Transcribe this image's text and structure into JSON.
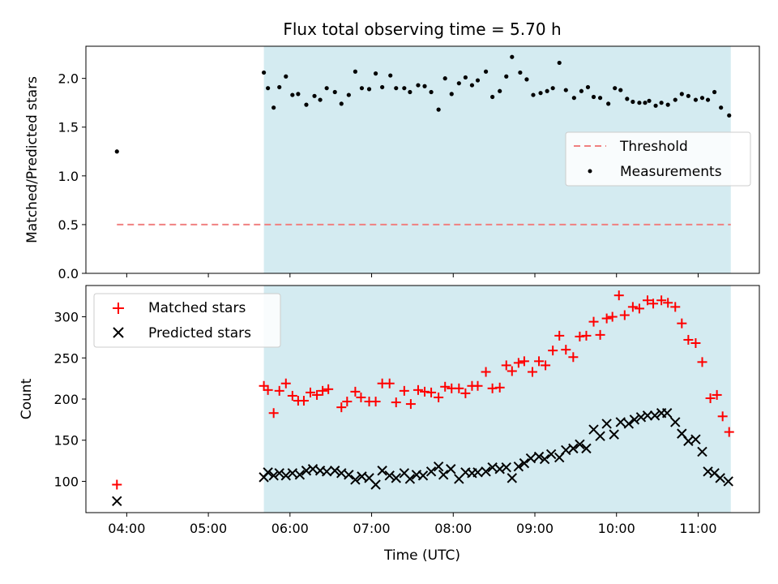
{
  "chart_data": [
    {
      "type": "scatter",
      "title": "Flux total observing time = 5.70 h",
      "xlabel": "",
      "ylabel": "Matched/Predicted stars",
      "xlim": [
        3.5,
        11.75
      ],
      "ylim": [
        0,
        2.33
      ],
      "grid": false,
      "legend": "center-right",
      "x_ticks": [
        {
          "v": 4,
          "label": "04:00"
        },
        {
          "v": 5,
          "label": "05:00"
        },
        {
          "v": 6,
          "label": "06:00"
        },
        {
          "v": 7,
          "label": "07:00"
        },
        {
          "v": 8,
          "label": "08:00"
        },
        {
          "v": 9,
          "label": "09:00"
        },
        {
          "v": 10,
          "label": "10:00"
        },
        {
          "v": 11,
          "label": "11:00"
        }
      ],
      "y_ticks": [
        {
          "v": 0.0,
          "label": "0.0"
        },
        {
          "v": 0.5,
          "label": "0.5"
        },
        {
          "v": 1.0,
          "label": "1.0"
        },
        {
          "v": 1.5,
          "label": "1.5"
        },
        {
          "v": 2.0,
          "label": "2.0"
        }
      ],
      "shaded_region": {
        "x": [
          5.68,
          11.4
        ],
        "color": "#d4ebf1"
      },
      "threshold": {
        "name": "Threshold",
        "y": 0.5,
        "x": [
          3.88,
          11.4
        ],
        "color": "#f08080"
      },
      "series": [
        {
          "name": "Measurements",
          "color": "#000000",
          "points": [
            [
              3.88,
              1.25
            ],
            [
              5.68,
              2.06
            ],
            [
              5.73,
              1.9
            ],
            [
              5.8,
              1.7
            ],
            [
              5.87,
              1.91
            ],
            [
              5.95,
              2.02
            ],
            [
              6.03,
              1.83
            ],
            [
              6.1,
              1.84
            ],
            [
              6.2,
              1.73
            ],
            [
              6.3,
              1.82
            ],
            [
              6.37,
              1.78
            ],
            [
              6.45,
              1.9
            ],
            [
              6.55,
              1.86
            ],
            [
              6.63,
              1.74
            ],
            [
              6.72,
              1.83
            ],
            [
              6.8,
              2.07
            ],
            [
              6.88,
              1.9
            ],
            [
              6.97,
              1.89
            ],
            [
              7.05,
              2.05
            ],
            [
              7.13,
              1.91
            ],
            [
              7.23,
              2.03
            ],
            [
              7.3,
              1.9
            ],
            [
              7.4,
              1.9
            ],
            [
              7.47,
              1.86
            ],
            [
              7.57,
              1.93
            ],
            [
              7.65,
              1.92
            ],
            [
              7.73,
              1.86
            ],
            [
              7.82,
              1.68
            ],
            [
              7.9,
              2.0
            ],
            [
              7.98,
              1.84
            ],
            [
              8.07,
              1.95
            ],
            [
              8.15,
              2.01
            ],
            [
              8.23,
              1.93
            ],
            [
              8.3,
              1.98
            ],
            [
              8.4,
              2.07
            ],
            [
              8.48,
              1.81
            ],
            [
              8.57,
              1.87
            ],
            [
              8.65,
              2.02
            ],
            [
              8.72,
              2.22
            ],
            [
              8.82,
              2.06
            ],
            [
              8.9,
              1.99
            ],
            [
              8.98,
              1.83
            ],
            [
              9.07,
              1.85
            ],
            [
              9.15,
              1.87
            ],
            [
              9.22,
              1.9
            ],
            [
              9.3,
              2.16
            ],
            [
              9.38,
              1.88
            ],
            [
              9.48,
              1.8
            ],
            [
              9.57,
              1.87
            ],
            [
              9.65,
              1.91
            ],
            [
              9.72,
              1.81
            ],
            [
              9.8,
              1.8
            ],
            [
              9.9,
              1.74
            ],
            [
              9.98,
              1.9
            ],
            [
              10.05,
              1.88
            ],
            [
              10.13,
              1.79
            ],
            [
              10.2,
              1.76
            ],
            [
              10.28,
              1.75
            ],
            [
              10.35,
              1.75
            ],
            [
              10.4,
              1.77
            ],
            [
              10.48,
              1.72
            ],
            [
              10.55,
              1.75
            ],
            [
              10.63,
              1.73
            ],
            [
              10.72,
              1.78
            ],
            [
              10.8,
              1.84
            ],
            [
              10.88,
              1.82
            ],
            [
              10.97,
              1.78
            ],
            [
              11.05,
              1.8
            ],
            [
              11.12,
              1.78
            ],
            [
              11.2,
              1.86
            ],
            [
              11.28,
              1.7
            ],
            [
              11.38,
              1.62
            ]
          ]
        }
      ]
    },
    {
      "type": "scatter",
      "title": "",
      "xlabel": "Time (UTC)",
      "ylabel": "Count",
      "xlim": [
        3.5,
        11.75
      ],
      "ylim": [
        62,
        338
      ],
      "grid": false,
      "legend": "top-left",
      "x_ticks": [
        {
          "v": 4,
          "label": "04:00"
        },
        {
          "v": 5,
          "label": "05:00"
        },
        {
          "v": 6,
          "label": "06:00"
        },
        {
          "v": 7,
          "label": "07:00"
        },
        {
          "v": 8,
          "label": "08:00"
        },
        {
          "v": 9,
          "label": "09:00"
        },
        {
          "v": 10,
          "label": "10:00"
        },
        {
          "v": 11,
          "label": "11:00"
        }
      ],
      "y_ticks": [
        {
          "v": 100,
          "label": "100"
        },
        {
          "v": 150,
          "label": "150"
        },
        {
          "v": 200,
          "label": "200"
        },
        {
          "v": 250,
          "label": "250"
        },
        {
          "v": 300,
          "label": "300"
        }
      ],
      "shaded_region": {
        "x": [
          5.68,
          11.4
        ],
        "color": "#d4ebf1"
      },
      "series": [
        {
          "name": "Matched stars",
          "marker": "plus",
          "color": "#ff0000",
          "points": [
            [
              3.88,
              96
            ],
            [
              5.68,
              216
            ],
            [
              5.73,
              211
            ],
            [
              5.8,
              183
            ],
            [
              5.87,
              210
            ],
            [
              5.95,
              219
            ],
            [
              6.03,
              204
            ],
            [
              6.1,
              198
            ],
            [
              6.17,
              198
            ],
            [
              6.25,
              208
            ],
            [
              6.33,
              205
            ],
            [
              6.4,
              210
            ],
            [
              6.47,
              212
            ],
            [
              6.63,
              190
            ],
            [
              6.7,
              197
            ],
            [
              6.8,
              209
            ],
            [
              6.87,
              202
            ],
            [
              6.97,
              197
            ],
            [
              7.05,
              197
            ],
            [
              7.13,
              219
            ],
            [
              7.22,
              219
            ],
            [
              7.3,
              196
            ],
            [
              7.4,
              210
            ],
            [
              7.48,
              194
            ],
            [
              7.57,
              211
            ],
            [
              7.65,
              209
            ],
            [
              7.73,
              208
            ],
            [
              7.82,
              202
            ],
            [
              7.9,
              215
            ],
            [
              7.98,
              213
            ],
            [
              8.07,
              213
            ],
            [
              8.15,
              207
            ],
            [
              8.23,
              216
            ],
            [
              8.3,
              216
            ],
            [
              8.4,
              233
            ],
            [
              8.48,
              213
            ],
            [
              8.57,
              214
            ],
            [
              8.65,
              241
            ],
            [
              8.72,
              234
            ],
            [
              8.8,
              244
            ],
            [
              8.87,
              246
            ],
            [
              8.97,
              233
            ],
            [
              9.05,
              246
            ],
            [
              9.13,
              241
            ],
            [
              9.22,
              259
            ],
            [
              9.3,
              277
            ],
            [
              9.38,
              260
            ],
            [
              9.47,
              251
            ],
            [
              9.55,
              276
            ],
            [
              9.63,
              277
            ],
            [
              9.72,
              294
            ],
            [
              9.8,
              278
            ],
            [
              9.88,
              298
            ],
            [
              9.95,
              300
            ],
            [
              10.03,
              326
            ],
            [
              10.1,
              302
            ],
            [
              10.2,
              312
            ],
            [
              10.28,
              310
            ],
            [
              10.38,
              320
            ],
            [
              10.45,
              316
            ],
            [
              10.55,
              320
            ],
            [
              10.63,
              317
            ],
            [
              10.72,
              312
            ],
            [
              10.8,
              292
            ],
            [
              10.88,
              272
            ],
            [
              10.97,
              268
            ],
            [
              11.05,
              245
            ],
            [
              11.15,
              201
            ],
            [
              11.23,
              205
            ],
            [
              11.3,
              179
            ],
            [
              11.38,
              160
            ]
          ]
        },
        {
          "name": "Predicted stars",
          "marker": "x",
          "color": "#000000",
          "points": [
            [
              3.88,
              76
            ],
            [
              5.68,
              105
            ],
            [
              5.73,
              111
            ],
            [
              5.8,
              107
            ],
            [
              5.87,
              110
            ],
            [
              5.95,
              107
            ],
            [
              6.03,
              110
            ],
            [
              6.12,
              108
            ],
            [
              6.2,
              113
            ],
            [
              6.28,
              115
            ],
            [
              6.37,
              113
            ],
            [
              6.45,
              112
            ],
            [
              6.55,
              113
            ],
            [
              6.63,
              110
            ],
            [
              6.72,
              108
            ],
            [
              6.8,
              102
            ],
            [
              6.88,
              106
            ],
            [
              6.97,
              104
            ],
            [
              7.05,
              96
            ],
            [
              7.13,
              113
            ],
            [
              7.22,
              107
            ],
            [
              7.3,
              104
            ],
            [
              7.4,
              110
            ],
            [
              7.47,
              103
            ],
            [
              7.55,
              108
            ],
            [
              7.63,
              107
            ],
            [
              7.73,
              112
            ],
            [
              7.82,
              118
            ],
            [
              7.88,
              108
            ],
            [
              7.97,
              115
            ],
            [
              8.07,
              103
            ],
            [
              8.15,
              111
            ],
            [
              8.23,
              110
            ],
            [
              8.3,
              111
            ],
            [
              8.4,
              112
            ],
            [
              8.48,
              117
            ],
            [
              8.57,
              115
            ],
            [
              8.65,
              117
            ],
            [
              8.72,
              104
            ],
            [
              8.8,
              118
            ],
            [
              8.87,
              122
            ],
            [
              8.95,
              128
            ],
            [
              9.05,
              130
            ],
            [
              9.12,
              127
            ],
            [
              9.2,
              133
            ],
            [
              9.3,
              129
            ],
            [
              9.38,
              138
            ],
            [
              9.47,
              140
            ],
            [
              9.55,
              145
            ],
            [
              9.63,
              140
            ],
            [
              9.72,
              163
            ],
            [
              9.8,
              155
            ],
            [
              9.88,
              170
            ],
            [
              9.97,
              157
            ],
            [
              10.05,
              172
            ],
            [
              10.15,
              170
            ],
            [
              10.22,
              175
            ],
            [
              10.3,
              178
            ],
            [
              10.38,
              180
            ],
            [
              10.47,
              180
            ],
            [
              10.55,
              183
            ],
            [
              10.62,
              183
            ],
            [
              10.72,
              172
            ],
            [
              10.8,
              158
            ],
            [
              10.88,
              149
            ],
            [
              10.97,
              151
            ],
            [
              11.05,
              136
            ],
            [
              11.12,
              112
            ],
            [
              11.2,
              110
            ],
            [
              11.27,
              104
            ],
            [
              11.37,
              100
            ]
          ]
        }
      ]
    }
  ]
}
